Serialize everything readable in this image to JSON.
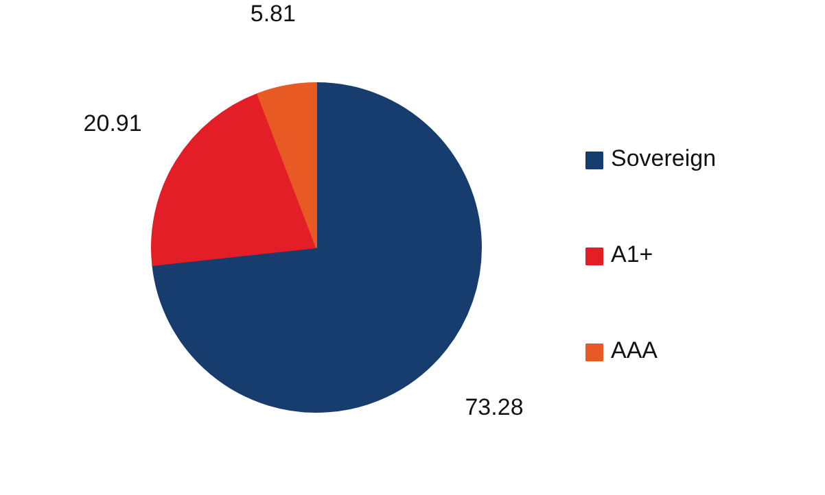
{
  "chart_data": {
    "type": "pie",
    "categories": [
      "Sovereign",
      "A1+",
      "AAA"
    ],
    "values": [
      73.28,
      20.91,
      5.81
    ],
    "colors": [
      "#173c6e",
      "#e31e26",
      "#e85a24"
    ],
    "data_labels": true,
    "legend": "right"
  }
}
